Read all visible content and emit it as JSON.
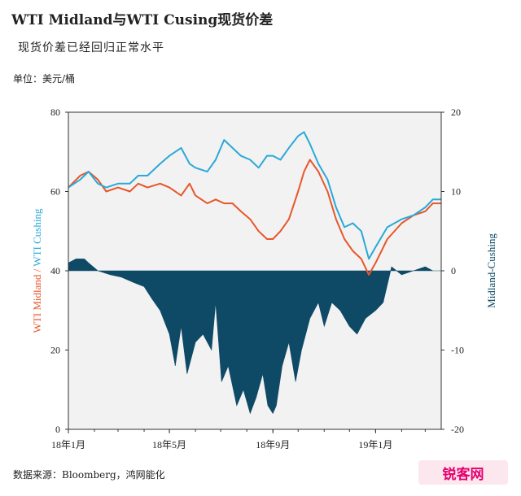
{
  "header": {
    "title": "WTI Midland与WTI Cusing现货价差",
    "subtitle": "现货价差已经回归正常水平",
    "unit": "单位：美元/桶"
  },
  "footer": {
    "source": "数据来源：Bloomberg，鸿网能化",
    "watermark": "锐客网"
  },
  "colors": {
    "midland": "#e8562a",
    "cushing": "#2aa9d8",
    "spread": "#0e4a66",
    "plot_bg": "#f2f2f2"
  },
  "chart_data": {
    "type": "line",
    "x_tick_labels": [
      "18年1月",
      "18年5月",
      "18年9月",
      "19年1月"
    ],
    "xlim": [
      "2018-01-01",
      "2019-03-20"
    ],
    "y_left": {
      "label": "WTI Midland / WTI Cushing",
      "range": [
        0,
        80
      ],
      "ticks": [
        "0",
        "20",
        "40",
        "60",
        "80"
      ]
    },
    "y_right": {
      "label": "Midland-Cushing",
      "range": [
        -20,
        20
      ],
      "ticks": [
        "-20",
        "-10",
        "0",
        "10",
        "20"
      ]
    },
    "series": [
      {
        "name": "WTI Midland",
        "axis": "left",
        "points": [
          [
            "2018-01-01",
            61
          ],
          [
            "2018-01-15",
            64
          ],
          [
            "2018-01-25",
            65
          ],
          [
            "2018-02-05",
            63
          ],
          [
            "2018-02-15",
            60
          ],
          [
            "2018-03-01",
            61
          ],
          [
            "2018-03-15",
            60
          ],
          [
            "2018-03-25",
            62
          ],
          [
            "2018-04-05",
            61
          ],
          [
            "2018-04-20",
            62
          ],
          [
            "2018-05-01",
            61
          ],
          [
            "2018-05-15",
            59
          ],
          [
            "2018-05-25",
            62
          ],
          [
            "2018-06-01",
            59
          ],
          [
            "2018-06-15",
            57
          ],
          [
            "2018-06-25",
            58
          ],
          [
            "2018-07-05",
            57
          ],
          [
            "2018-07-15",
            57
          ],
          [
            "2018-07-25",
            55
          ],
          [
            "2018-08-05",
            53
          ],
          [
            "2018-08-15",
            50
          ],
          [
            "2018-08-25",
            48
          ],
          [
            "2018-09-01",
            48
          ],
          [
            "2018-09-10",
            50
          ],
          [
            "2018-09-20",
            53
          ],
          [
            "2018-10-01",
            60
          ],
          [
            "2018-10-08",
            65
          ],
          [
            "2018-10-15",
            68
          ],
          [
            "2018-10-25",
            65
          ],
          [
            "2018-11-05",
            60
          ],
          [
            "2018-11-15",
            53
          ],
          [
            "2018-11-25",
            48
          ],
          [
            "2018-12-05",
            45
          ],
          [
            "2018-12-15",
            43
          ],
          [
            "2018-12-24",
            39
          ],
          [
            "2019-01-01",
            42
          ],
          [
            "2019-01-15",
            48
          ],
          [
            "2019-02-01",
            52
          ],
          [
            "2019-02-15",
            54
          ],
          [
            "2019-03-01",
            55
          ],
          [
            "2019-03-10",
            57
          ],
          [
            "2019-03-20",
            57
          ]
        ]
      },
      {
        "name": "WTI Cushing",
        "axis": "left",
        "points": [
          [
            "2018-01-01",
            61
          ],
          [
            "2018-01-15",
            63
          ],
          [
            "2018-01-25",
            65
          ],
          [
            "2018-02-05",
            62
          ],
          [
            "2018-02-15",
            61
          ],
          [
            "2018-03-01",
            62
          ],
          [
            "2018-03-15",
            62
          ],
          [
            "2018-03-25",
            64
          ],
          [
            "2018-04-05",
            64
          ],
          [
            "2018-04-20",
            67
          ],
          [
            "2018-05-01",
            69
          ],
          [
            "2018-05-15",
            71
          ],
          [
            "2018-05-25",
            67
          ],
          [
            "2018-06-01",
            66
          ],
          [
            "2018-06-15",
            65
          ],
          [
            "2018-06-25",
            68
          ],
          [
            "2018-07-05",
            73
          ],
          [
            "2018-07-15",
            71
          ],
          [
            "2018-07-25",
            69
          ],
          [
            "2018-08-05",
            68
          ],
          [
            "2018-08-15",
            66
          ],
          [
            "2018-08-25",
            69
          ],
          [
            "2018-09-01",
            69
          ],
          [
            "2018-09-10",
            68
          ],
          [
            "2018-09-20",
            71
          ],
          [
            "2018-10-01",
            74
          ],
          [
            "2018-10-08",
            75
          ],
          [
            "2018-10-15",
            72
          ],
          [
            "2018-10-25",
            67
          ],
          [
            "2018-11-05",
            63
          ],
          [
            "2018-11-15",
            56
          ],
          [
            "2018-11-25",
            51
          ],
          [
            "2018-12-05",
            52
          ],
          [
            "2018-12-15",
            50
          ],
          [
            "2018-12-24",
            43
          ],
          [
            "2019-01-01",
            46
          ],
          [
            "2019-01-15",
            51
          ],
          [
            "2019-02-01",
            53
          ],
          [
            "2019-02-15",
            54
          ],
          [
            "2019-03-01",
            56
          ],
          [
            "2019-03-10",
            58
          ],
          [
            "2019-03-20",
            58
          ]
        ]
      },
      {
        "name": "Midland-Cushing",
        "axis": "right",
        "type": "area",
        "points": [
          [
            "2018-01-01",
            1
          ],
          [
            "2018-01-10",
            1.5
          ],
          [
            "2018-01-20",
            1.5
          ],
          [
            "2018-01-25",
            1
          ],
          [
            "2018-02-05",
            0
          ],
          [
            "2018-02-20",
            -0.5
          ],
          [
            "2018-03-05",
            -0.8
          ],
          [
            "2018-03-20",
            -1.5
          ],
          [
            "2018-04-01",
            -2
          ],
          [
            "2018-04-10",
            -3.5
          ],
          [
            "2018-04-20",
            -5
          ],
          [
            "2018-05-01",
            -8
          ],
          [
            "2018-05-08",
            -12
          ],
          [
            "2018-05-15",
            -7
          ],
          [
            "2018-05-22",
            -13
          ],
          [
            "2018-06-01",
            -9
          ],
          [
            "2018-06-10",
            -8
          ],
          [
            "2018-06-20",
            -10
          ],
          [
            "2018-06-25",
            -4
          ],
          [
            "2018-07-02",
            -14
          ],
          [
            "2018-07-10",
            -12
          ],
          [
            "2018-07-20",
            -17
          ],
          [
            "2018-07-28",
            -15
          ],
          [
            "2018-08-05",
            -18
          ],
          [
            "2018-08-12",
            -16
          ],
          [
            "2018-08-20",
            -13
          ],
          [
            "2018-08-26",
            -17
          ],
          [
            "2018-09-01",
            -18
          ],
          [
            "2018-09-05",
            -17
          ],
          [
            "2018-09-12",
            -12
          ],
          [
            "2018-09-20",
            -9
          ],
          [
            "2018-09-28",
            -14
          ],
          [
            "2018-10-05",
            -10
          ],
          [
            "2018-10-15",
            -6
          ],
          [
            "2018-10-25",
            -4
          ],
          [
            "2018-11-01",
            -7
          ],
          [
            "2018-11-10",
            -4
          ],
          [
            "2018-11-20",
            -5
          ],
          [
            "2018-12-01",
            -7
          ],
          [
            "2018-12-10",
            -8
          ],
          [
            "2018-12-20",
            -6
          ],
          [
            "2019-01-01",
            -5
          ],
          [
            "2019-01-10",
            -4
          ],
          [
            "2019-01-20",
            0.5
          ],
          [
            "2019-02-01",
            -0.5
          ],
          [
            "2019-02-15",
            0
          ],
          [
            "2019-03-01",
            0.5
          ],
          [
            "2019-03-10",
            0
          ],
          [
            "2019-03-20",
            0
          ]
        ]
      }
    ],
    "grid": false,
    "legend": "none"
  }
}
